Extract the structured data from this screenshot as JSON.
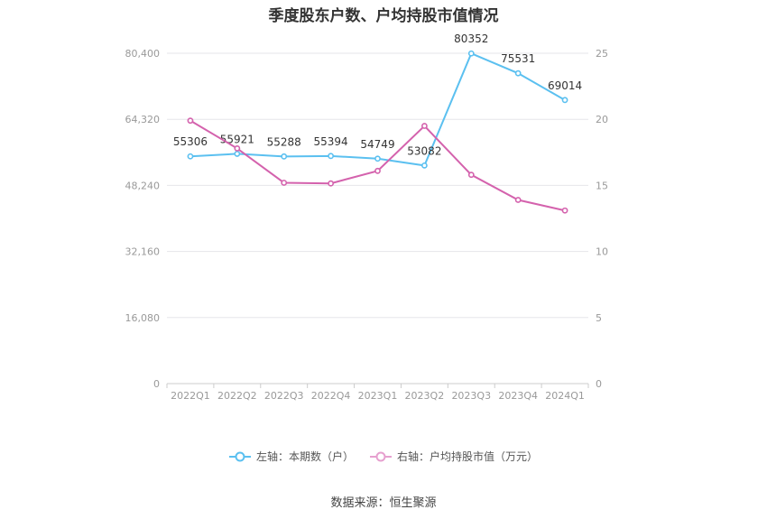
{
  "title": "季度股东户数、户均持股市值情况",
  "source": "数据来源：恒生聚源",
  "colors": {
    "left": "#5bc0f0",
    "right": "#d462ad",
    "grid": "#e6e6ea",
    "axis": "#999999",
    "label": "#333333"
  },
  "legend": [
    {
      "label": "左轴：本期数（户）",
      "color": "#5bc0f0"
    },
    {
      "label": "右轴：户均持股市值（万元）",
      "color": "#e6a0cf"
    }
  ],
  "chart_data": {
    "type": "line",
    "categories": [
      "2022Q1",
      "2022Q2",
      "2022Q3",
      "2022Q4",
      "2023Q1",
      "2023Q2",
      "2023Q3",
      "2023Q4",
      "2024Q1"
    ],
    "left_axis": {
      "ticks": [
        "0",
        "16,080",
        "32,160",
        "48,240",
        "64,320",
        "80,400"
      ],
      "range": [
        0,
        80400
      ]
    },
    "right_axis": {
      "ticks": [
        "0",
        "5",
        "10",
        "15",
        "20",
        "25"
      ],
      "range": [
        0,
        25
      ]
    },
    "series": [
      {
        "name": "左轴：本期数（户）",
        "axis": "left",
        "values": [
          55306,
          55921,
          55288,
          55394,
          54749,
          53082,
          80352,
          75531,
          69014
        ],
        "labels": [
          "55306",
          "55921",
          "55288",
          "55394",
          "54749",
          "53082",
          "80352",
          "75531",
          "69014"
        ]
      },
      {
        "name": "右轴：户均持股市值（万元）",
        "axis": "right",
        "values": [
          19.9,
          17.8,
          15.2,
          15.15,
          16.1,
          19.5,
          15.8,
          13.9,
          13.1
        ]
      }
    ]
  }
}
